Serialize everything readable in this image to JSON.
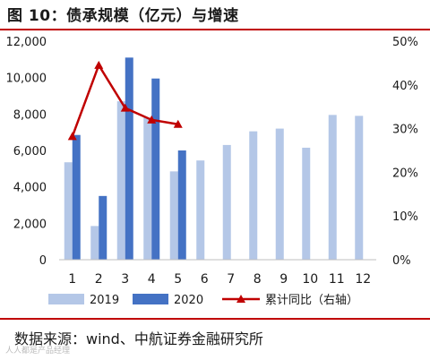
{
  "title": "图 10：债承规模（亿元）与增速",
  "source": "数据来源：wind、中航证券金融研究所",
  "watermark": "人人都是产品经理",
  "colors": {
    "s2019": "#b4c7e7",
    "s2020": "#4472c4",
    "growth": "#c00000",
    "rule": "#c00000"
  },
  "chart_data": {
    "type": "bar",
    "categories": [
      "1",
      "2",
      "3",
      "4",
      "5",
      "6",
      "7",
      "8",
      "9",
      "10",
      "11",
      "12"
    ],
    "ylim": [
      0,
      12000
    ],
    "y2lim": [
      0,
      50
    ],
    "yticks": [
      "0",
      "2,000",
      "4,000",
      "6,000",
      "8,000",
      "10,000",
      "12,000"
    ],
    "y2ticks": [
      "0%",
      "10%",
      "20%",
      "30%",
      "40%",
      "50%"
    ],
    "series": [
      {
        "name": "2019",
        "kind": "bar",
        "values": [
          5350,
          1850,
          8700,
          7800,
          4850,
          5450,
          6300,
          7050,
          7200,
          6150,
          7950,
          7900
        ]
      },
      {
        "name": "2020",
        "kind": "bar",
        "values": [
          6850,
          3500,
          11100,
          9950,
          6000,
          null,
          null,
          null,
          null,
          null,
          null,
          null
        ]
      },
      {
        "name": "累计同比（右轴）",
        "kind": "line",
        "axis": "right",
        "values": [
          28.2,
          44.5,
          34.7,
          32.0,
          31.0,
          null,
          null,
          null,
          null,
          null,
          null,
          null
        ]
      }
    ]
  }
}
